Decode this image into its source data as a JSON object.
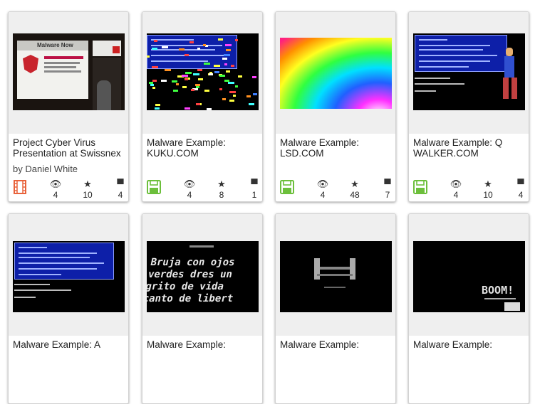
{
  "cards": [
    {
      "title": "Project Cyber Virus Presentation at Swissnex",
      "byline": "by Daniel White",
      "type_icon": "film-icon",
      "type_color": "#e8623b",
      "views": "4",
      "favorites": "10",
      "reviews": "4",
      "thumb_text": "Malware Now"
    },
    {
      "title": "Malware Example: KUKU.COM",
      "type_icon": "floppy-disk-icon",
      "type_color": "#6cbf3b",
      "views": "4",
      "favorites": "8",
      "reviews": "1"
    },
    {
      "title": "Malware Example: LSD.COM",
      "type_icon": "floppy-disk-icon",
      "type_color": "#6cbf3b",
      "views": "4",
      "favorites": "48",
      "reviews": "7"
    },
    {
      "title": "Malware Example: Q WALKER.COM",
      "type_icon": "floppy-disk-icon",
      "type_color": "#6cbf3b",
      "views": "4",
      "favorites": "10",
      "reviews": "4"
    },
    {
      "title": "Malware Example: A"
    },
    {
      "title": "Malware Example:",
      "thumb_text": "Bruja con ojos verdes dres un grito de vida canto de libert"
    },
    {
      "title": "Malware Example:"
    },
    {
      "title": "Malware Example:",
      "thumb_text": "BOOM!"
    }
  ],
  "icons": {
    "views": "eye-icon",
    "favorites": "star-icon",
    "reviews": "speech-bubble-icon"
  }
}
